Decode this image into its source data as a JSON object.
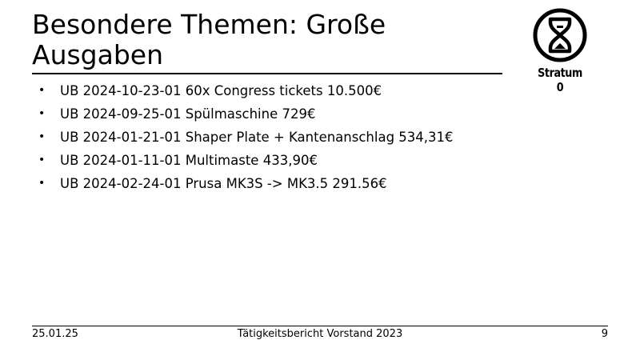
{
  "slide": {
    "title": "Besondere Themen: Große Ausgaben",
    "logo_text": "Stratum 0",
    "items": [
      {
        "text": "UB 2024-10-23-01 60x Congress tickets 10.500€"
      },
      {
        "text": "UB 2024-09-25-01 Spülmaschine 729€"
      },
      {
        "text": "UB 2024-01-21-01 Shaper Plate + Kantenanschlag 534,31€"
      },
      {
        "text": "UB 2024-01-11-01 Multimaste 433,90€"
      },
      {
        "text": "UB 2024-02-24-01 Prusa MK3S -> MK3.5 291.56€"
      }
    ]
  },
  "footer": {
    "date": "25.01.25",
    "center": "Tätigkeitsbericht Vorstand 2023",
    "page": "9"
  },
  "icons": {
    "logo": "hourglass-logo",
    "bullet": "bullet-dot"
  }
}
